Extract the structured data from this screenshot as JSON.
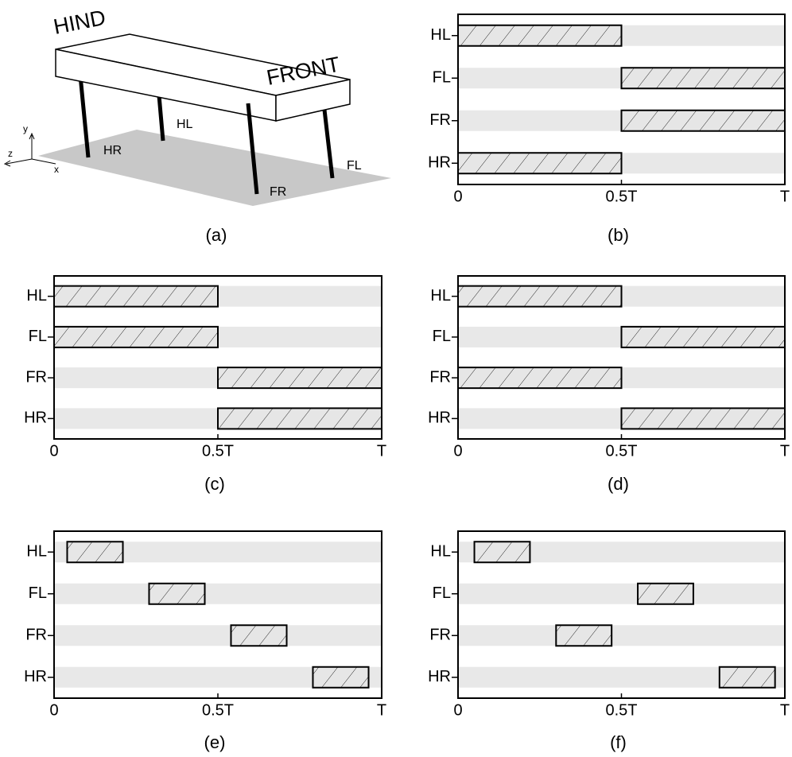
{
  "diagram": {
    "caption": "(a)",
    "hind": "HIND",
    "front": "FRONT",
    "legs": [
      "HL",
      "HR",
      "FR",
      "FL"
    ],
    "axes": [
      "y",
      "z",
      "x"
    ]
  },
  "chart_data": [
    {
      "type": "gait",
      "title": "(b)",
      "categories": [
        "HL",
        "FL",
        "FR",
        "HR"
      ],
      "values": [
        [
          0,
          0.5
        ],
        [
          0.5,
          1
        ],
        [
          0.5,
          1
        ],
        [
          0,
          0.5
        ]
      ],
      "xlim": [
        0,
        1
      ],
      "xticks": [
        0,
        {
          "value": 0.5,
          "label": "0.5T"
        },
        {
          "value": 1,
          "label": "T"
        }
      ]
    },
    {
      "type": "gait",
      "title": "(c)",
      "categories": [
        "HL",
        "FL",
        "FR",
        "HR"
      ],
      "values": [
        [
          0,
          0.5
        ],
        [
          0,
          0.5
        ],
        [
          0.5,
          1
        ],
        [
          0.5,
          1
        ]
      ],
      "xlim": [
        0,
        1
      ],
      "xticks": [
        0,
        {
          "value": 0.5,
          "label": "0.5T"
        },
        {
          "value": 1,
          "label": "T"
        }
      ]
    },
    {
      "type": "gait",
      "title": "(d)",
      "categories": [
        "HL",
        "FL",
        "FR",
        "HR"
      ],
      "values": [
        [
          0,
          0.5
        ],
        [
          0.5,
          1
        ],
        [
          0,
          0.5
        ],
        [
          0.5,
          1
        ]
      ],
      "xlim": [
        0,
        1
      ],
      "xticks": [
        0,
        {
          "value": 0.5,
          "label": "0.5T"
        },
        {
          "value": 1,
          "label": "T"
        }
      ]
    },
    {
      "type": "gait",
      "title": "(e)",
      "categories": [
        "HL",
        "FL",
        "FR",
        "HR"
      ],
      "values": [
        [
          0.04,
          0.21
        ],
        [
          0.29,
          0.46
        ],
        [
          0.54,
          0.71
        ],
        [
          0.79,
          0.96
        ]
      ],
      "xlim": [
        0,
        1
      ],
      "xticks": [
        0,
        {
          "value": 0.5,
          "label": "0.5T"
        },
        {
          "value": 1,
          "label": "T"
        }
      ]
    },
    {
      "type": "gait",
      "title": "(f)",
      "categories": [
        "HL",
        "FL",
        "FR",
        "HR"
      ],
      "values": [
        [
          0.05,
          0.22
        ],
        [
          0.55,
          0.72
        ],
        [
          0.3,
          0.47
        ],
        [
          0.8,
          0.97
        ]
      ],
      "xlim": [
        0,
        1
      ],
      "xticks": [
        0,
        {
          "value": 0.5,
          "label": "0.5T"
        },
        {
          "value": 1,
          "label": "T"
        }
      ]
    }
  ]
}
